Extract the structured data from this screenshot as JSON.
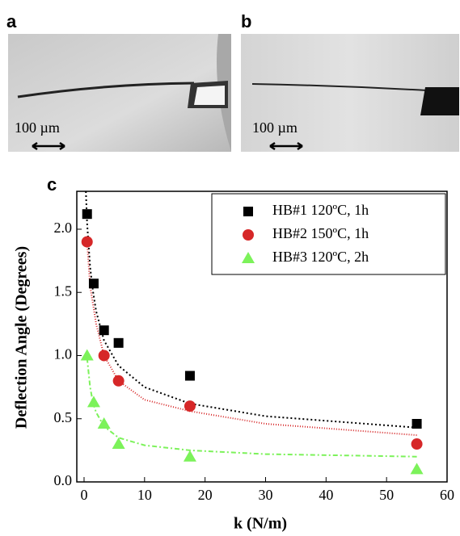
{
  "panels": {
    "a": {
      "label": "a",
      "scale_bar": "100 µm"
    },
    "b": {
      "label": "b",
      "scale_bar": "100 µm"
    }
  },
  "chart_data": {
    "type": "scatter",
    "label": "c",
    "x_label": "k (N/m)",
    "y_label": "Deflection Angle (Degrees)",
    "xlim": [
      -1.2,
      60
    ],
    "ylim": [
      0,
      2.3
    ],
    "xticks": [
      0,
      10,
      20,
      30,
      40,
      50,
      60
    ],
    "yticks": [
      {
        "value": 0,
        "label": "0.0"
      },
      0.5,
      {
        "value": 1,
        "label": "1.0"
      },
      1.5,
      {
        "value": 2,
        "label": "2.0"
      }
    ],
    "legend": "top-right",
    "series": [
      {
        "name": "HB#1 120ºC, 1h",
        "color": "#000000",
        "marker": "square",
        "x": [
          0.5,
          1.6,
          3.3,
          5.7,
          17.5,
          55
        ],
        "values": [
          2.12,
          1.57,
          1.2,
          1.1,
          0.84,
          0.46
        ]
      },
      {
        "name": "HB#2 150ºC, 1h",
        "color": "#d62728",
        "marker": "circle",
        "x": [
          0.5,
          3.3,
          5.7,
          17.5,
          55
        ],
        "values": [
          1.9,
          1.0,
          0.8,
          0.6,
          0.3
        ]
      },
      {
        "name": "HB#3 120ºC, 2h",
        "color": "#7cf25a",
        "marker": "triangle",
        "x": [
          0.5,
          1.6,
          3.3,
          5.7,
          17.5,
          55
        ],
        "values": [
          1.0,
          0.63,
          0.46,
          0.3,
          0.2,
          0.1
        ]
      }
    ],
    "fits": [
      {
        "color": "#000000",
        "dash": "2,3",
        "x": [
          0.3,
          0.5,
          1,
          1.5,
          2,
          3.3,
          5.7,
          10,
          17.5,
          30,
          55
        ],
        "values": [
          2.3,
          2.05,
          1.7,
          1.5,
          1.35,
          1.12,
          0.92,
          0.75,
          0.62,
          0.52,
          0.43
        ]
      },
      {
        "color": "#d62728",
        "dash": "1,2",
        "x": [
          0.5,
          1,
          1.5,
          2,
          3.3,
          5.7,
          10,
          17.5,
          30,
          55
        ],
        "values": [
          1.9,
          1.55,
          1.4,
          1.25,
          1.0,
          0.8,
          0.65,
          0.56,
          0.46,
          0.37
        ]
      },
      {
        "color": "#7cf25a",
        "dash": "6,3,2,3",
        "x": [
          0.5,
          1,
          1.5,
          2,
          3.3,
          5.7,
          10,
          17.5,
          30,
          55
        ],
        "values": [
          0.98,
          0.75,
          0.62,
          0.55,
          0.44,
          0.35,
          0.29,
          0.25,
          0.22,
          0.2
        ]
      }
    ]
  }
}
